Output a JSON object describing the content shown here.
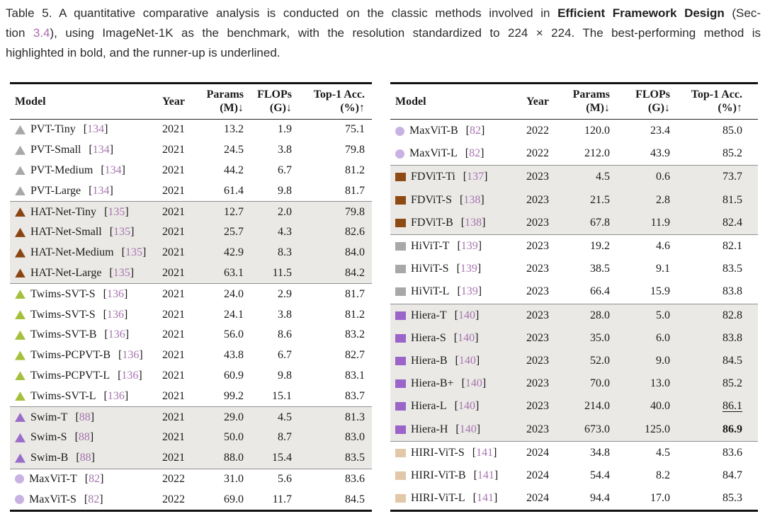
{
  "caption": {
    "line1_text": "Table 5.  A quantitative comparative analysis is conducted on the classic methods involved in ",
    "line1_bold": "Efficient Framework Design",
    "line1_tail": " (Sec-",
    "line2_pre": "tion ",
    "line2_link": "3.4",
    "line2_tail": "), using ImageNet-1K as the benchmark, with the resolution standardized to 224 × 224. The best-performing method is",
    "line3": "highlighted in bold, and the runner-up is underlined."
  },
  "symbols": {
    "open_bracket": "[",
    "close_bracket": "]"
  },
  "headers": {
    "model": "Model",
    "year": "Year",
    "params_1": "Params",
    "params_2": "(M)↓",
    "flops_1": "FLOPs",
    "flops_2": "(G)↓",
    "acc_1": "Top-1 Acc.",
    "acc_2": "(%)↑"
  },
  "colors": {
    "shaded_row_bg": "#eae9e6",
    "caption_link": "#b06ab0",
    "citation_number": "#a674ae",
    "pvt_marker": "#a8a8a8",
    "hatnet_marker": "#8a4513",
    "twims_marker": "#a4c03c",
    "swim_marker": "#9a6ec8",
    "maxvit_marker": "#c9b2e2",
    "fdvit_marker": "#8e4a12",
    "hivit_marker": "#a8a8a8",
    "hiera_marker": "#9a64c8",
    "hirivit_marker": "#e2c8a8"
  },
  "left_table": {
    "groups": [
      {
        "shaded": false,
        "marker_shape": "triangle",
        "marker_color": "#a8a8a8",
        "rows": [
          {
            "model": "PVT-Tiny",
            "cite": "134",
            "year": "2021",
            "params": "13.2",
            "flops": "1.9",
            "acc": "75.1"
          },
          {
            "model": "PVT-Small",
            "cite": "134",
            "year": "2021",
            "params": "24.5",
            "flops": "3.8",
            "acc": "79.8"
          },
          {
            "model": "PVT-Medium",
            "cite": "134",
            "year": "2021",
            "params": "44.2",
            "flops": "6.7",
            "acc": "81.2"
          },
          {
            "model": "PVT-Large",
            "cite": "134",
            "year": "2021",
            "params": "61.4",
            "flops": "9.8",
            "acc": "81.7"
          }
        ]
      },
      {
        "shaded": true,
        "marker_shape": "triangle",
        "marker_color": "#8a4513",
        "rows": [
          {
            "model": "HAT-Net-Tiny",
            "cite": "135",
            "year": "2021",
            "params": "12.7",
            "flops": "2.0",
            "acc": "79.8"
          },
          {
            "model": "HAT-Net-Small",
            "cite": "135",
            "year": "2021",
            "params": "25.7",
            "flops": "4.3",
            "acc": "82.6"
          },
          {
            "model": "HAT-Net-Medium",
            "cite": "135",
            "year": "2021",
            "params": "42.9",
            "flops": "8.3",
            "acc": "84.0"
          },
          {
            "model": "HAT-Net-Large",
            "cite": "135",
            "year": "2021",
            "params": "63.1",
            "flops": "11.5",
            "acc": "84.2"
          }
        ]
      },
      {
        "shaded": false,
        "marker_shape": "triangle",
        "marker_color": "#a4c03c",
        "rows": [
          {
            "model": "Twims-SVT-S",
            "cite": "136",
            "year": "2021",
            "params": "24.0",
            "flops": "2.9",
            "acc": "81.7"
          },
          {
            "model": "Twims-SVT-S",
            "cite": "136",
            "year": "2021",
            "params": "24.1",
            "flops": "3.8",
            "acc": "81.2"
          },
          {
            "model": "Twims-SVT-B",
            "cite": "136",
            "year": "2021",
            "params": "56.0",
            "flops": "8.6",
            "acc": "83.2"
          },
          {
            "model": "Twims-PCPVT-B",
            "cite": "136",
            "year": "2021",
            "params": "43.8",
            "flops": "6.7",
            "acc": "82.7"
          },
          {
            "model": "Twims-PCPVT-L",
            "cite": "136",
            "year": "2021",
            "params": "60.9",
            "flops": "9.8",
            "acc": "83.1"
          },
          {
            "model": "Twims-SVT-L",
            "cite": "136",
            "year": "2021",
            "params": "99.2",
            "flops": "15.1",
            "acc": "83.7"
          }
        ]
      },
      {
        "shaded": true,
        "marker_shape": "triangle",
        "marker_color": "#9a6ec8",
        "rows": [
          {
            "model": "Swim-T",
            "cite": "88",
            "year": "2021",
            "params": "29.0",
            "flops": "4.5",
            "acc": "81.3"
          },
          {
            "model": "Swim-S",
            "cite": "88",
            "year": "2021",
            "params": "50.0",
            "flops": "8.7",
            "acc": "83.0"
          },
          {
            "model": "Swim-B",
            "cite": "88",
            "year": "2021",
            "params": "88.0",
            "flops": "15.4",
            "acc": "83.5"
          }
        ]
      },
      {
        "shaded": false,
        "marker_shape": "circle",
        "marker_color": "#c9b2e2",
        "rows": [
          {
            "model": "MaxViT-T",
            "cite": "82",
            "year": "2022",
            "params": "31.0",
            "flops": "5.6",
            "acc": "83.6"
          },
          {
            "model": "MaxViT-S",
            "cite": "82",
            "year": "2022",
            "params": "69.0",
            "flops": "11.7",
            "acc": "84.5"
          }
        ]
      }
    ]
  },
  "right_table": {
    "groups": [
      {
        "shaded": false,
        "marker_shape": "circle",
        "marker_color": "#c9b2e2",
        "rows": [
          {
            "model": "MaxViT-B",
            "cite": "82",
            "year": "2022",
            "params": "120.0",
            "flops": "23.4",
            "acc": "85.0"
          },
          {
            "model": "MaxViT-L",
            "cite": "82",
            "year": "2022",
            "params": "212.0",
            "flops": "43.9",
            "acc": "85.2"
          }
        ]
      },
      {
        "shaded": true,
        "marker_shape": "square",
        "marker_color": "#8e4a12",
        "rows": [
          {
            "model": "FDViT-Ti",
            "cite": "137",
            "year": "2023",
            "params": "4.5",
            "flops": "0.6",
            "acc": "73.7"
          },
          {
            "model": "FDViT-S",
            "cite": "138",
            "year": "2023",
            "params": "21.5",
            "flops": "2.8",
            "acc": "81.5"
          },
          {
            "model": "FDViT-B",
            "cite": "138",
            "year": "2023",
            "params": "67.8",
            "flops": "11.9",
            "acc": "82.4"
          }
        ]
      },
      {
        "shaded": false,
        "marker_shape": "square",
        "marker_color": "#a8a8a8",
        "rows": [
          {
            "model": "HiViT-T",
            "cite": "139",
            "year": "2023",
            "params": "19.2",
            "flops": "4.6",
            "acc": "82.1"
          },
          {
            "model": "HiViT-S",
            "cite": "139",
            "year": "2023",
            "params": "38.5",
            "flops": "9.1",
            "acc": "83.5"
          },
          {
            "model": "HiViT-L",
            "cite": "139",
            "year": "2023",
            "params": "66.4",
            "flops": "15.9",
            "acc": "83.8"
          }
        ]
      },
      {
        "shaded": true,
        "marker_shape": "square",
        "marker_color": "#9a64c8",
        "rows": [
          {
            "model": "Hiera-T",
            "cite": "140",
            "year": "2023",
            "params": "28.0",
            "flops": "5.0",
            "acc": "82.8"
          },
          {
            "model": "Hiera-S",
            "cite": "140",
            "year": "2023",
            "params": "35.0",
            "flops": "6.0",
            "acc": "83.8"
          },
          {
            "model": "Hiera-B",
            "cite": "140",
            "year": "2023",
            "params": "52.0",
            "flops": "9.0",
            "acc": "84.5"
          },
          {
            "model": "Hiera-B+",
            "cite": "140",
            "year": "2023",
            "params": "70.0",
            "flops": "13.0",
            "acc": "85.2"
          },
          {
            "model": "Hiera-L",
            "cite": "140",
            "year": "2023",
            "params": "214.0",
            "flops": "40.0",
            "acc": "86.1",
            "acc_style": "underline"
          },
          {
            "model": "Hiera-H",
            "cite": "140",
            "year": "2023",
            "params": "673.0",
            "flops": "125.0",
            "acc": "86.9",
            "acc_style": "bold"
          }
        ]
      },
      {
        "shaded": false,
        "marker_shape": "square",
        "marker_color": "#e2c8a8",
        "rows": [
          {
            "model": "HIRI-ViT-S",
            "cite": "141",
            "year": "2024",
            "params": "34.8",
            "flops": "4.5",
            "acc": "83.6"
          },
          {
            "model": "HIRI-ViT-B",
            "cite": "141",
            "year": "2024",
            "params": "54.4",
            "flops": "8.2",
            "acc": "84.7"
          },
          {
            "model": "HIRI-ViT-L",
            "cite": "141",
            "year": "2024",
            "params": "94.4",
            "flops": "17.0",
            "acc": "85.3"
          }
        ]
      }
    ]
  }
}
